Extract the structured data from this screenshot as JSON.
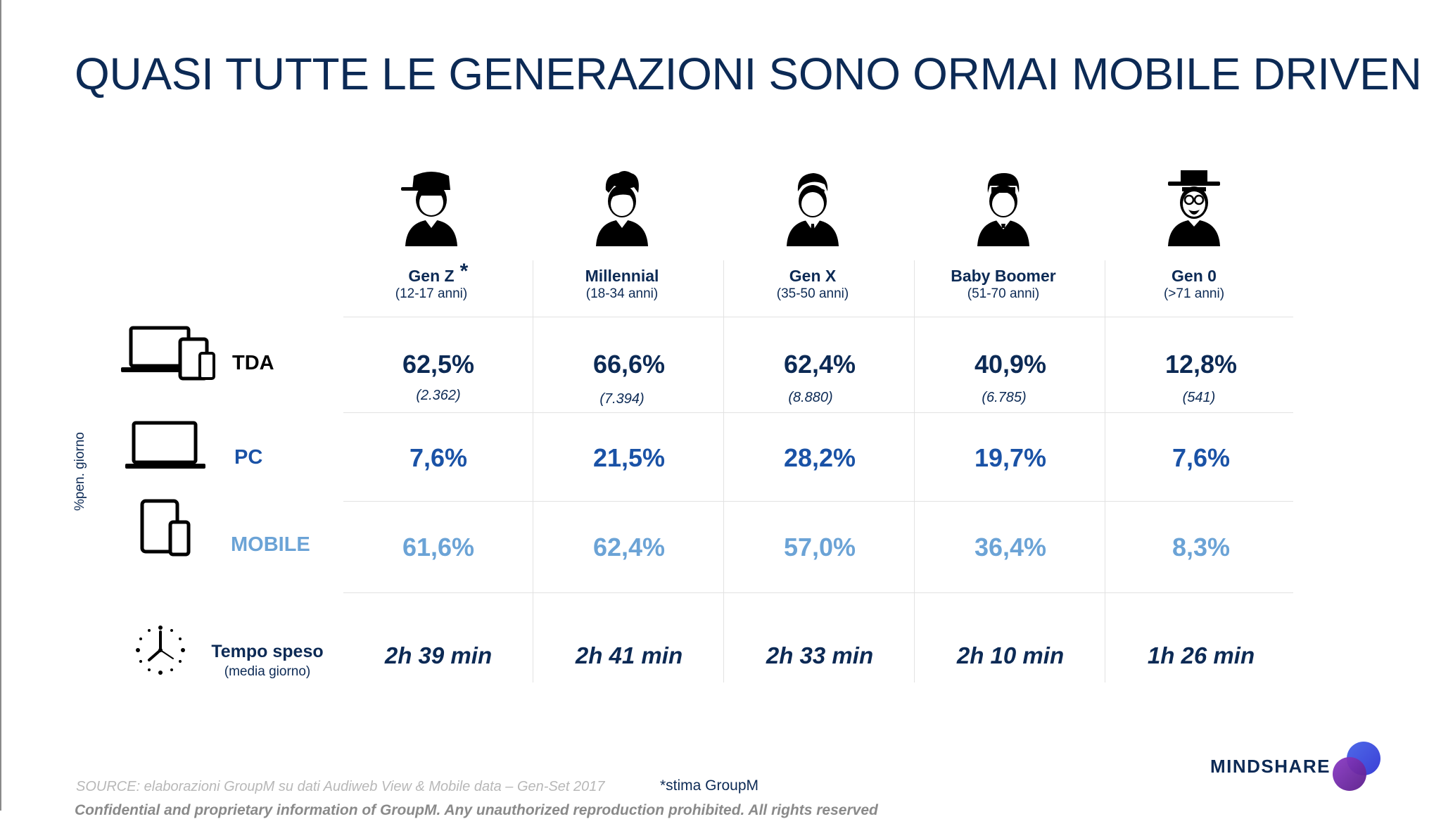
{
  "title": "QUASI TUTTE LE GENERAZIONI SONO ORMAI MOBILE DRIVEN",
  "generations": [
    {
      "name": "Gen Z",
      "age": "(12-17 anni)",
      "asterisk": "*",
      "icon": "teen-cap-avatar-icon"
    },
    {
      "name": "Millennial",
      "age": "(18-34 anni)",
      "icon": "millennial-avatar-icon"
    },
    {
      "name": "Gen X",
      "age": "(35-50 anni)",
      "icon": "genx-tie-avatar-icon"
    },
    {
      "name": "Baby Boomer",
      "age": "(51-70 anni)",
      "icon": "boomer-avatar-icon"
    },
    {
      "name": "Gen 0",
      "age": "(>71 anni)",
      "icon": "elder-hat-glasses-avatar-icon"
    }
  ],
  "side_label": "%pen. giorno",
  "rows": {
    "tda": {
      "label": "TDA",
      "icon": "all-devices-icon",
      "color": "#0c2a55",
      "values": [
        "62,5%",
        "66,6%",
        "62,4%",
        "40,9%",
        "12,8%"
      ],
      "counts": [
        "(2.362)",
        "(7.394)",
        "(8.880)",
        "(6.785)",
        "(541)"
      ]
    },
    "pc": {
      "label": "PC",
      "icon": "laptop-icon",
      "color": "#1a52a6",
      "values": [
        "7,6%",
        "21,5%",
        "28,2%",
        "19,7%",
        "7,6%"
      ]
    },
    "mobile": {
      "label": "MOBILE",
      "icon": "tablet-phone-icon",
      "color": "#6ba3d6",
      "values": [
        "61,6%",
        "62,4%",
        "57,0%",
        "36,4%",
        "8,3%"
      ]
    },
    "time": {
      "label": "Tempo speso",
      "sublabel": "(media giorno)",
      "icon": "clock-icon",
      "values": [
        "2h 39 min",
        "2h 41 min",
        "2h 33 min",
        "2h 10 min",
        "1h 26 min"
      ]
    }
  },
  "footer": {
    "source": "SOURCE: elaborazioni GroupM su dati Audiweb View & Mobile data – Gen-Set 2017",
    "estimate_note": "*stima GroupM",
    "confidential": "Confidential and proprietary information of GroupM. Any unauthorized reproduction prohibited. All rights reserved",
    "brand": "MINDSHARE",
    "brand_colors": [
      "#3b3fd6",
      "#7a2fb0"
    ]
  }
}
